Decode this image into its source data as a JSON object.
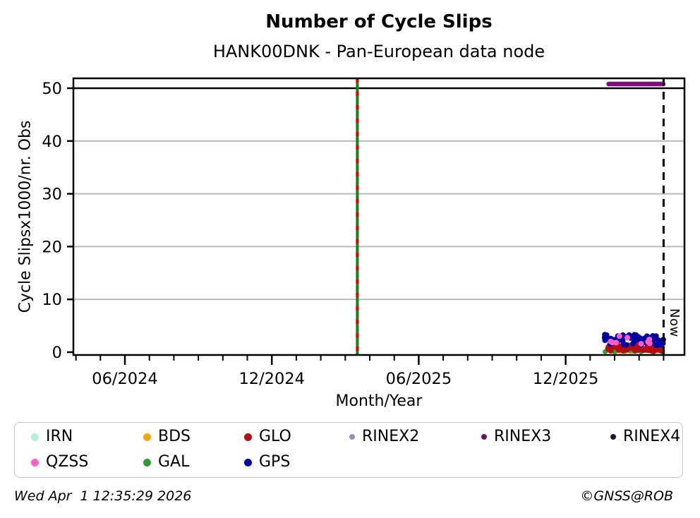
{
  "chart_data": {
    "type": "scatter",
    "title": "Number of Cycle Slips",
    "subtitle": "HANK00DNK - Pan-European data node",
    "xlabel": "Month/Year",
    "ylabel": "Cycle Slipsx1000/nr. Obs",
    "ylim": [
      0,
      51.9
    ],
    "yticks": [
      0,
      10,
      20,
      30,
      40,
      50
    ],
    "grid": "horizontal-gray-plus-black-line-at-50",
    "grid_color": "#b9b9b9",
    "x_axis": {
      "start_month": "2024-04",
      "end_month": "2026-04",
      "minor_ticks": "monthly",
      "tick_labels": [
        {
          "label": "06/2024",
          "month": "2024-06"
        },
        {
          "label": "12/2024",
          "month": "2024-12"
        },
        {
          "label": "06/2025",
          "month": "2025-06"
        },
        {
          "label": "12/2025",
          "month": "2025-12"
        }
      ]
    },
    "series": [
      {
        "name": "BDS",
        "color": "#F5A800",
        "n": 30,
        "y_center": 0.18,
        "y_spread": 0.28,
        "r": 3,
        "x_start": "2026-01-20",
        "x_end": "2026-03-30"
      },
      {
        "name": "GAL",
        "color": "#2E9E34",
        "n": 50,
        "y_center": 0.35,
        "y_spread": 0.55,
        "r": 3.5,
        "x_start": "2026-01-19",
        "x_end": "2026-03-30"
      },
      {
        "name": "GLO",
        "color": "#B50D12",
        "n": 70,
        "y_center": 0.75,
        "y_spread": 1.15,
        "r": 4,
        "x_start": "2026-01-19",
        "x_end": "2026-03-31"
      },
      {
        "name": "GPS",
        "color": "#0000A0",
        "n": 70,
        "y_center": 2.3,
        "y_spread": 2.1,
        "r": 4,
        "x_start": "2026-01-19",
        "x_end": "2026-03-31"
      },
      {
        "name": "QZSS",
        "color": "#FF5EC8",
        "n": 9,
        "y_center": 2.3,
        "y_spread": 2.8,
        "r": 4,
        "x_start": "2026-01-22",
        "x_end": "2026-03-30"
      }
    ],
    "rinex3_segment": {
      "name": "RINEX3",
      "color": "#7B0E7B",
      "value": 50.8,
      "x_start": "2026-01-24",
      "x_end": "2026-03-31"
    },
    "event_line": {
      "date": "2025-03-16",
      "color": "#1B7E1B",
      "dash_color": "#DE0000",
      "style": "green-solid-with-red-dashes"
    },
    "now_line": {
      "date": "2026-04-01",
      "label": "Now",
      "style": "black-dashed"
    }
  },
  "legend": {
    "rows": [
      [
        {
          "label": "IRN",
          "color": "#B2F0E6",
          "size": "large"
        },
        {
          "label": "BDS",
          "color": "#F5A800",
          "size": "large"
        },
        {
          "label": "GLO",
          "color": "#B50D12",
          "size": "large"
        },
        {
          "label": "RINEX2",
          "color": "#8F8FC8",
          "size": "small"
        },
        {
          "label": "RINEX3",
          "color": "#6B116B",
          "size": "small"
        },
        {
          "label": "RINEX4",
          "color": "#2B0B30",
          "size": "small"
        }
      ],
      [
        {
          "label": "QZSS",
          "color": "#FF5EC8",
          "size": "large"
        },
        {
          "label": "GAL",
          "color": "#2E9E34",
          "size": "large"
        },
        {
          "label": "GPS",
          "color": "#0000A0",
          "size": "large"
        }
      ]
    ]
  },
  "footer": {
    "left": "Wed Apr  1 12:35:29 2026",
    "right": "©GNSS@ROB"
  }
}
